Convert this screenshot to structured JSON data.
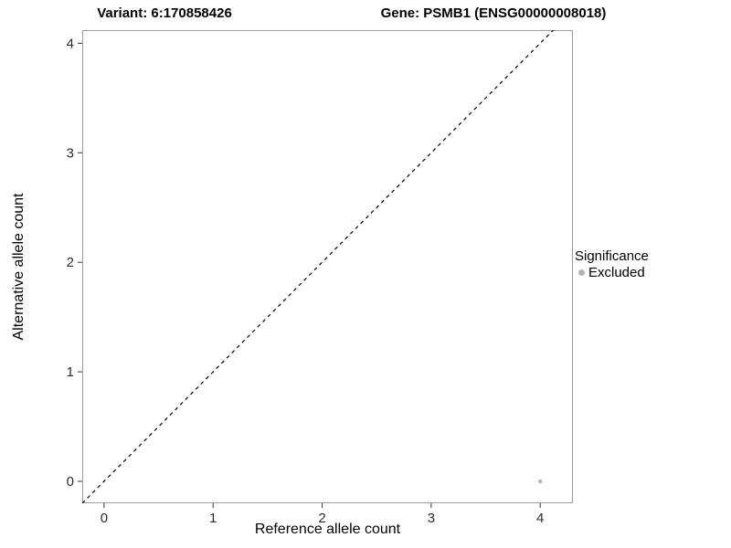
{
  "chart_data": {
    "type": "scatter",
    "titles": {
      "left": "Variant: 6:170858426",
      "right": "Gene: PSMB1 (ENSG00000008018)"
    },
    "xlabel": "Reference allele count",
    "ylabel": "Alternative allele count",
    "xlim": [
      -0.2,
      4.3
    ],
    "ylim": [
      -0.2,
      4.12
    ],
    "xticks": [
      0,
      1,
      2,
      3,
      4
    ],
    "yticks": [
      0,
      1,
      2,
      3,
      4
    ],
    "grid": false,
    "panel": {
      "background": "#ffffff",
      "border_color": "#9e9e9e"
    },
    "identity_line": {
      "style": "dashed",
      "color": "#000000",
      "from": [
        -0.2,
        -0.2
      ],
      "to": [
        4.3,
        4.3
      ]
    },
    "series": [
      {
        "name": "Excluded",
        "color": "#b3b3b3",
        "marker": "circle",
        "size": 2.2,
        "points": [
          [
            4,
            0
          ]
        ]
      }
    ],
    "legend": {
      "position": "right",
      "title": "Significance",
      "entries": [
        {
          "label": "Excluded",
          "color": "#b3b3b3"
        }
      ]
    }
  }
}
